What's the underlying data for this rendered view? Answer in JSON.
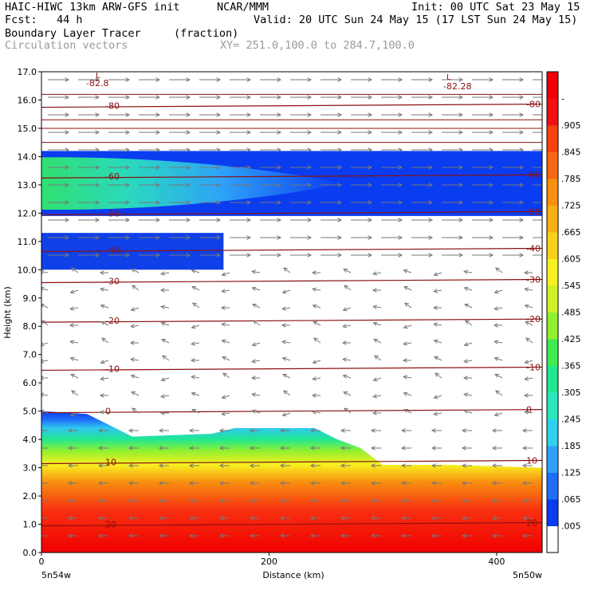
{
  "header": {
    "model_line": "HAIC-HIWC 13km ARW-GFS init",
    "org": "NCAR/MMM",
    "init": "Init: 00 UTC Sat 23 May 15",
    "fcst": "Fcst:   44 h",
    "valid": "Valid: 20 UTC Sun 24 May 15 (17 LST Sun 24 May 15)",
    "field_name": "Boundary Layer Tracer",
    "field_units": "(fraction)",
    "vectors_label": "Circulation vectors",
    "xy_label": "XY= 251.0,100.0 to 284.7,100.0"
  },
  "axes": {
    "ylabel": "Height (km)",
    "xlabel": "Distance (km)",
    "left_end_label": "5n54w",
    "right_end_label": "5n50w"
  },
  "chart_data": {
    "type": "heatmap",
    "x_range": [
      0,
      440
    ],
    "y_range": [
      0.0,
      17.0
    ],
    "x_ticks": [
      "0",
      "200",
      "400"
    ],
    "y_ticks": [
      "0.0",
      "1.0",
      "2.0",
      "3.0",
      "4.0",
      "5.0",
      "6.0",
      "7.0",
      "8.0",
      "9.0",
      "10.0",
      "11.0",
      "12.0",
      "13.0",
      "14.0",
      "15.0",
      "16.0",
      "17.0"
    ],
    "colorbar": {
      "labels": [
        ".005",
        ".065",
        ".125",
        ".185",
        ".245",
        ".305",
        ".365",
        ".425",
        ".485",
        ".545",
        ".605",
        ".665",
        ".725",
        ".785",
        ".845",
        ".905",
        "-"
      ],
      "colors": [
        "#ffffff",
        "#0a3cf0",
        "#1e6ef8",
        "#2ea2f8",
        "#30d0f0",
        "#2ae8c0",
        "#20e890",
        "#40ec50",
        "#90f030",
        "#d0f028",
        "#f8f020",
        "#f8d018",
        "#f8b010",
        "#f89010",
        "#f86810",
        "#f84010",
        "#f01010",
        "#f00000"
      ]
    },
    "temperature_contours": [
      {
        "label": "20",
        "height_km": 1.0
      },
      {
        "label": "10",
        "height_km": 3.2
      },
      {
        "label": "0",
        "height_km": 5.0
      },
      {
        "label": "-10",
        "height_km": 6.5
      },
      {
        "label": "-20",
        "height_km": 8.2
      },
      {
        "label": "-30",
        "height_km": 9.6
      },
      {
        "label": "-40",
        "height_km": 10.7
      },
      {
        "label": "-50",
        "height_km": 12.0
      },
      {
        "label": "-60",
        "height_km": 13.3
      },
      {
        "label": "-80",
        "height_km": 15.8
      }
    ],
    "contour_minima": [
      "-82.8",
      "-82.28"
    ],
    "low_marker": "L",
    "surface_layer_top_km": [
      {
        "x": 0,
        "y": 5.0
      },
      {
        "x": 40,
        "y": 4.9
      },
      {
        "x": 80,
        "y": 4.1
      },
      {
        "x": 150,
        "y": 4.2
      },
      {
        "x": 170,
        "y": 4.4
      },
      {
        "x": 240,
        "y": 4.4
      },
      {
        "x": 260,
        "y": 4.0
      },
      {
        "x": 280,
        "y": 3.7
      },
      {
        "x": 300,
        "y": 3.1
      },
      {
        "x": 360,
        "y": 3.1
      },
      {
        "x": 440,
        "y": 3.0
      }
    ],
    "upper_layers_km": [
      {
        "from_x": 0,
        "to_x": 440,
        "bottom": 11.9,
        "top": 14.2,
        "max_fraction": 0.4
      },
      {
        "from_x": 0,
        "to_x": 160,
        "bottom": 10.0,
        "top": 11.3,
        "max_fraction": 0.1
      }
    ],
    "grid": false
  }
}
